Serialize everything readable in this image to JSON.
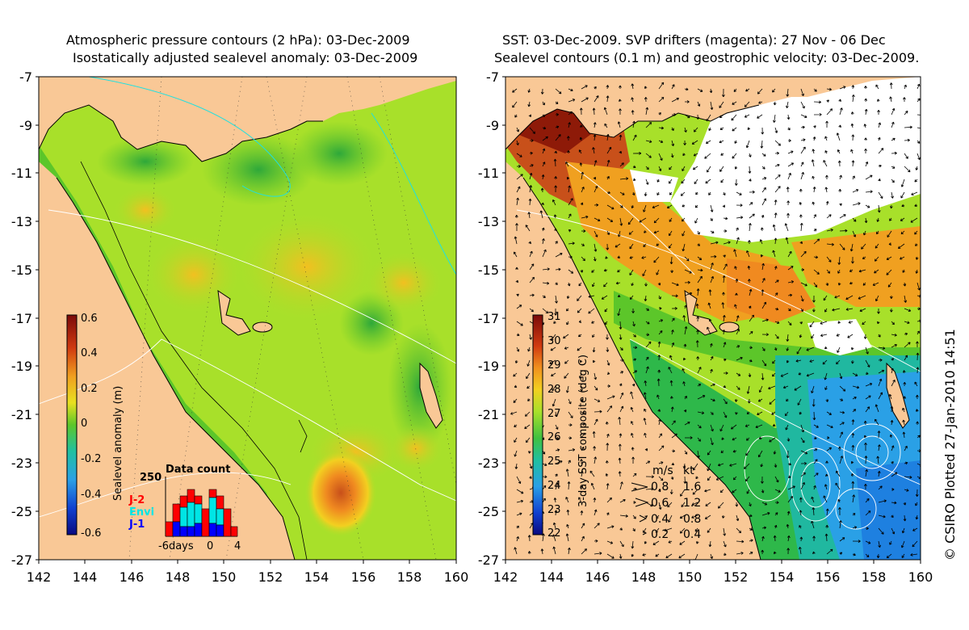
{
  "left_panel": {
    "title_line1": "Atmospheric pressure contours (2 hPa): 03-Dec-2009",
    "title_line2": "Isostatically adjusted sealevel anomaly: 03-Dec-2009",
    "y_ticks": [
      "-7",
      "-9",
      "-11",
      "-13",
      "-15",
      "-17",
      "-19",
      "-21",
      "-23",
      "-25",
      "-27"
    ],
    "x_ticks": [
      "142",
      "144",
      "146",
      "148",
      "150",
      "152",
      "154",
      "156",
      "158",
      "160"
    ],
    "colorbar_label": "Sealevel anomaly (m)",
    "colorbar_ticks": [
      "0.6",
      "0.4",
      "0.2",
      "0",
      "-0.2",
      "-0.4",
      "-0.6"
    ],
    "data_count": {
      "title": "Data count",
      "max_label": "250",
      "x_labels": [
        "-6days",
        "0",
        "4"
      ],
      "legend": [
        {
          "name": "J-2",
          "color": "#ff0000"
        },
        {
          "name": "Envi",
          "color": "#00e5e5"
        },
        {
          "name": "J-1",
          "color": "#0000ff"
        }
      ]
    }
  },
  "right_panel": {
    "title_line1": "SST: 03-Dec-2009. SVP drifters (magenta): 27 Nov - 06 Dec",
    "title_line2": "Sealevel contours (0.1 m) and geostrophic velocity: 03-Dec-2009.",
    "y_ticks": [
      "-7",
      "-9",
      "-11",
      "-13",
      "-15",
      "-17",
      "-19",
      "-21",
      "-23",
      "-25",
      "-27"
    ],
    "x_ticks": [
      "142",
      "144",
      "146",
      "148",
      "150",
      "152",
      "154",
      "156",
      "158",
      "160"
    ],
    "colorbar_label": "3-day SST composite (deg C)",
    "colorbar_ticks": [
      "31",
      "30",
      "29",
      "28",
      "27",
      "26",
      "25",
      "24",
      "23",
      "22"
    ],
    "velocity_legend": {
      "header_ms": "m/s",
      "header_kt": "kt",
      "rows": [
        {
          "ms": "0.8",
          "kt": "1.6"
        },
        {
          "ms": "0.6",
          "kt": "1.2"
        },
        {
          "ms": "0.4",
          "kt": "0.8"
        },
        {
          "ms": "0.2",
          "kt": "0.4"
        }
      ]
    }
  },
  "credit": "© CSIRO Plotted 27-Jan-2010 14:51",
  "colors": {
    "land": "#f9c896",
    "ocean_green": "#5cc62a",
    "ocean_lime": "#a8e02a",
    "ocean_yellow": "#f2d020",
    "sst_red": "#8e1a08",
    "sst_orange": "#f08a20",
    "sst_blue": "#2aa0e6"
  }
}
